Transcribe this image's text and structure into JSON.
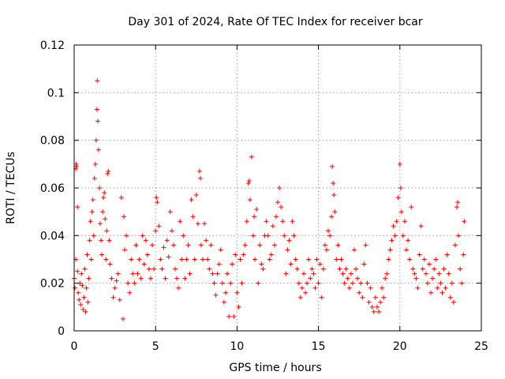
{
  "chart_data": {
    "type": "scatter",
    "title": "Day 301 of 2024, Rate Of TEC Index for receiver bcar",
    "xlabel": "GPS time / hours",
    "ylabel": "ROTI / TECUs",
    "xlim": [
      0,
      25
    ],
    "ylim": [
      0,
      0.12
    ],
    "xticks": [
      0,
      5,
      10,
      15,
      20,
      25
    ],
    "yticks": [
      0,
      0.02,
      0.04,
      0.06,
      0.08,
      0.1,
      0.12
    ],
    "xtick_labels": [
      "0",
      "5",
      "10",
      "15",
      "20",
      "25"
    ],
    "ytick_labels": [
      "0",
      "0.02",
      "0.04",
      "0.06",
      "0.08",
      "0.1",
      "0.12"
    ],
    "grid": true,
    "marker": "+",
    "color": "#ff0000",
    "series": [
      {
        "name": "ROTI",
        "points": [
          [
            0.0,
            0.022
          ],
          [
            0.05,
            0.018
          ],
          [
            0.1,
            0.03
          ],
          [
            0.1,
            0.068
          ],
          [
            0.12,
            0.07
          ],
          [
            0.15,
            0.069
          ],
          [
            0.2,
            0.052
          ],
          [
            0.2,
            0.025
          ],
          [
            0.25,
            0.016
          ],
          [
            0.3,
            0.013
          ],
          [
            0.35,
            0.02
          ],
          [
            0.4,
            0.011
          ],
          [
            0.45,
            0.024
          ],
          [
            0.5,
            0.019
          ],
          [
            0.55,
            0.009
          ],
          [
            0.6,
            0.014
          ],
          [
            0.65,
            0.026
          ],
          [
            0.7,
            0.008
          ],
          [
            0.75,
            0.018
          ],
          [
            0.8,
            0.032
          ],
          [
            0.85,
            0.012
          ],
          [
            0.9,
            0.022
          ],
          [
            0.95,
            0.038
          ],
          [
            1.0,
            0.046
          ],
          [
            1.05,
            0.03
          ],
          [
            1.1,
            0.05
          ],
          [
            1.15,
            0.055
          ],
          [
            1.2,
            0.04
          ],
          [
            1.25,
            0.064
          ],
          [
            1.3,
            0.07
          ],
          [
            1.35,
            0.08
          ],
          [
            1.4,
            0.093
          ],
          [
            1.42,
            0.105
          ],
          [
            1.45,
            0.088
          ],
          [
            1.5,
            0.076
          ],
          [
            1.55,
            0.06
          ],
          [
            1.6,
            0.045
          ],
          [
            1.65,
            0.038
          ],
          [
            1.7,
            0.032
          ],
          [
            1.75,
            0.05
          ],
          [
            1.8,
            0.056
          ],
          [
            1.85,
            0.058
          ],
          [
            1.9,
            0.047
          ],
          [
            1.95,
            0.03
          ],
          [
            2.0,
            0.042
          ],
          [
            2.05,
            0.066
          ],
          [
            2.1,
            0.067
          ],
          [
            2.15,
            0.038
          ],
          [
            2.2,
            0.028
          ],
          [
            2.3,
            0.022
          ],
          [
            2.4,
            0.014
          ],
          [
            2.5,
            0.018
          ],
          [
            2.6,
            0.021
          ],
          [
            2.7,
            0.024
          ],
          [
            2.8,
            0.013
          ],
          [
            2.9,
            0.056
          ],
          [
            3.0,
            0.005
          ],
          [
            3.05,
            0.048
          ],
          [
            3.1,
            0.034
          ],
          [
            3.2,
            0.04
          ],
          [
            3.3,
            0.02
          ],
          [
            3.4,
            0.016
          ],
          [
            3.5,
            0.03
          ],
          [
            3.6,
            0.024
          ],
          [
            3.7,
            0.02
          ],
          [
            3.8,
            0.036
          ],
          [
            3.9,
            0.024
          ],
          [
            4.0,
            0.03
          ],
          [
            4.1,
            0.022
          ],
          [
            4.2,
            0.04
          ],
          [
            4.3,
            0.028
          ],
          [
            4.4,
            0.038
          ],
          [
            4.5,
            0.032
          ],
          [
            4.6,
            0.026
          ],
          [
            4.7,
            0.022
          ],
          [
            4.8,
            0.036
          ],
          [
            4.9,
            0.026
          ],
          [
            5.0,
            0.042
          ],
          [
            5.05,
            0.056
          ],
          [
            5.1,
            0.054
          ],
          [
            5.2,
            0.044
          ],
          [
            5.3,
            0.03
          ],
          [
            5.4,
            0.026
          ],
          [
            5.5,
            0.035
          ],
          [
            5.6,
            0.022
          ],
          [
            5.7,
            0.038
          ],
          [
            5.8,
            0.031
          ],
          [
            5.9,
            0.05
          ],
          [
            6.0,
            0.042
          ],
          [
            6.1,
            0.036
          ],
          [
            6.2,
            0.026
          ],
          [
            6.3,
            0.022
          ],
          [
            6.4,
            0.018
          ],
          [
            6.5,
            0.046
          ],
          [
            6.6,
            0.03
          ],
          [
            6.7,
            0.04
          ],
          [
            6.8,
            0.022
          ],
          [
            6.9,
            0.03
          ],
          [
            7.0,
            0.036
          ],
          [
            7.1,
            0.024
          ],
          [
            7.2,
            0.055
          ],
          [
            7.3,
            0.048
          ],
          [
            7.4,
            0.03
          ],
          [
            7.5,
            0.057
          ],
          [
            7.6,
            0.045
          ],
          [
            7.7,
            0.067
          ],
          [
            7.75,
            0.064
          ],
          [
            7.8,
            0.036
          ],
          [
            7.9,
            0.03
          ],
          [
            8.0,
            0.045
          ],
          [
            8.1,
            0.038
          ],
          [
            8.2,
            0.03
          ],
          [
            8.3,
            0.026
          ],
          [
            8.4,
            0.036
          ],
          [
            8.5,
            0.024
          ],
          [
            8.6,
            0.02
          ],
          [
            8.7,
            0.015
          ],
          [
            8.8,
            0.024
          ],
          [
            8.9,
            0.028
          ],
          [
            9.0,
            0.034
          ],
          [
            9.1,
            0.02
          ],
          [
            9.2,
            0.012
          ],
          [
            9.3,
            0.016
          ],
          [
            9.4,
            0.024
          ],
          [
            9.5,
            0.006
          ],
          [
            9.6,
            0.02
          ],
          [
            9.7,
            0.028
          ],
          [
            9.8,
            0.006
          ],
          [
            9.9,
            0.032
          ],
          [
            10.0,
            0.016
          ],
          [
            10.1,
            0.01
          ],
          [
            10.2,
            0.03
          ],
          [
            10.3,
            0.02
          ],
          [
            10.4,
            0.032
          ],
          [
            10.5,
            0.036
          ],
          [
            10.6,
            0.046
          ],
          [
            10.7,
            0.062
          ],
          [
            10.75,
            0.063
          ],
          [
            10.8,
            0.055
          ],
          [
            10.9,
            0.073
          ],
          [
            11.0,
            0.04
          ],
          [
            11.05,
            0.048
          ],
          [
            11.1,
            0.03
          ],
          [
            11.2,
            0.051
          ],
          [
            11.3,
            0.02
          ],
          [
            11.4,
            0.036
          ],
          [
            11.5,
            0.028
          ],
          [
            11.6,
            0.026
          ],
          [
            11.7,
            0.04
          ],
          [
            11.8,
            0.046
          ],
          [
            11.9,
            0.04
          ],
          [
            12.0,
            0.03
          ],
          [
            12.1,
            0.032
          ],
          [
            12.2,
            0.044
          ],
          [
            12.3,
            0.036
          ],
          [
            12.4,
            0.048
          ],
          [
            12.5,
            0.054
          ],
          [
            12.6,
            0.06
          ],
          [
            12.7,
            0.052
          ],
          [
            12.8,
            0.046
          ],
          [
            12.9,
            0.04
          ],
          [
            13.0,
            0.024
          ],
          [
            13.1,
            0.034
          ],
          [
            13.2,
            0.038
          ],
          [
            13.3,
            0.028
          ],
          [
            13.4,
            0.046
          ],
          [
            13.5,
            0.04
          ],
          [
            13.6,
            0.03
          ],
          [
            13.7,
            0.026
          ],
          [
            13.8,
            0.02
          ],
          [
            13.9,
            0.014
          ],
          [
            14.0,
            0.018
          ],
          [
            14.1,
            0.024
          ],
          [
            14.2,
            0.016
          ],
          [
            14.3,
            0.02
          ],
          [
            14.4,
            0.03
          ],
          [
            14.5,
            0.022
          ],
          [
            14.6,
            0.026
          ],
          [
            14.7,
            0.024
          ],
          [
            14.8,
            0.018
          ],
          [
            14.9,
            0.03
          ],
          [
            15.0,
            0.02
          ],
          [
            15.1,
            0.028
          ],
          [
            15.2,
            0.014
          ],
          [
            15.3,
            0.026
          ],
          [
            15.4,
            0.036
          ],
          [
            15.5,
            0.034
          ],
          [
            15.6,
            0.042
          ],
          [
            15.7,
            0.04
          ],
          [
            15.8,
            0.048
          ],
          [
            15.85,
            0.069
          ],
          [
            15.9,
            0.062
          ],
          [
            15.95,
            0.057
          ],
          [
            16.0,
            0.05
          ],
          [
            16.1,
            0.03
          ],
          [
            16.2,
            0.036
          ],
          [
            16.3,
            0.026
          ],
          [
            16.4,
            0.03
          ],
          [
            16.5,
            0.024
          ],
          [
            16.6,
            0.02
          ],
          [
            16.7,
            0.026
          ],
          [
            16.8,
            0.022
          ],
          [
            16.9,
            0.018
          ],
          [
            17.0,
            0.024
          ],
          [
            17.1,
            0.02
          ],
          [
            17.2,
            0.034
          ],
          [
            17.3,
            0.026
          ],
          [
            17.4,
            0.022
          ],
          [
            17.5,
            0.016
          ],
          [
            17.6,
            0.02
          ],
          [
            17.7,
            0.014
          ],
          [
            17.8,
            0.028
          ],
          [
            17.9,
            0.036
          ],
          [
            18.0,
            0.02
          ],
          [
            18.1,
            0.012
          ],
          [
            18.2,
            0.018
          ],
          [
            18.3,
            0.01
          ],
          [
            18.4,
            0.008
          ],
          [
            18.5,
            0.014
          ],
          [
            18.6,
            0.01
          ],
          [
            18.7,
            0.008
          ],
          [
            18.8,
            0.012
          ],
          [
            18.9,
            0.018
          ],
          [
            19.0,
            0.014
          ],
          [
            19.1,
            0.022
          ],
          [
            19.2,
            0.024
          ],
          [
            19.3,
            0.03
          ],
          [
            19.4,
            0.034
          ],
          [
            19.5,
            0.038
          ],
          [
            19.6,
            0.044
          ],
          [
            19.7,
            0.04
          ],
          [
            19.8,
            0.046
          ],
          [
            19.9,
            0.056
          ],
          [
            20.0,
            0.07
          ],
          [
            20.05,
            0.06
          ],
          [
            20.1,
            0.05
          ],
          [
            20.2,
            0.04
          ],
          [
            20.3,
            0.046
          ],
          [
            20.4,
            0.034
          ],
          [
            20.5,
            0.038
          ],
          [
            20.6,
            0.03
          ],
          [
            20.7,
            0.052
          ],
          [
            20.8,
            0.026
          ],
          [
            20.9,
            0.024
          ],
          [
            21.0,
            0.022
          ],
          [
            21.1,
            0.018
          ],
          [
            21.2,
            0.032
          ],
          [
            21.3,
            0.044
          ],
          [
            21.4,
            0.026
          ],
          [
            21.5,
            0.03
          ],
          [
            21.6,
            0.024
          ],
          [
            21.7,
            0.02
          ],
          [
            21.8,
            0.028
          ],
          [
            21.9,
            0.016
          ],
          [
            22.0,
            0.022
          ],
          [
            22.1,
            0.026
          ],
          [
            22.2,
            0.03
          ],
          [
            22.3,
            0.018
          ],
          [
            22.4,
            0.024
          ],
          [
            22.5,
            0.02
          ],
          [
            22.6,
            0.016
          ],
          [
            22.7,
            0.026
          ],
          [
            22.8,
            0.018
          ],
          [
            22.9,
            0.032
          ],
          [
            23.0,
            0.024
          ],
          [
            23.1,
            0.014
          ],
          [
            23.2,
            0.02
          ],
          [
            23.3,
            0.012
          ],
          [
            23.4,
            0.036
          ],
          [
            23.5,
            0.052
          ],
          [
            23.55,
            0.054
          ],
          [
            23.6,
            0.04
          ],
          [
            23.7,
            0.026
          ],
          [
            23.8,
            0.02
          ],
          [
            23.9,
            0.032
          ],
          [
            23.95,
            0.046
          ]
        ]
      }
    ]
  }
}
